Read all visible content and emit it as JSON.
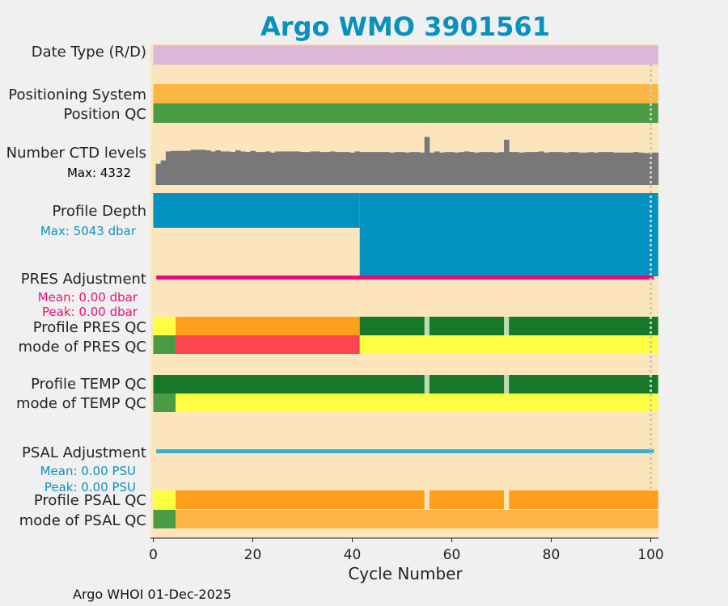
{
  "chart_data": {
    "type": "bar",
    "title": "Argo WMO 3901561",
    "xlabel": "Cycle Number",
    "xlim": [
      0,
      102
    ],
    "x_ticks": [
      "0",
      "20",
      "40",
      "60",
      "80",
      "100"
    ],
    "footer": "Argo WHOI 01-Dec-2025",
    "colors": {
      "background": "#fce5bc",
      "date_type": "#dbb8da",
      "positioning_system": "#fcb443",
      "position_qc": "#4a9a46",
      "ctd": "#787878",
      "depth": "#0391c0",
      "pres_adj": "#ea0b7b",
      "psal_adj": "#35b1cf",
      "qc_green_dark": "#18782a",
      "qc_green": "#4a9a46",
      "qc_yellow": "#fdfe40",
      "qc_orange": "#fd9f1d",
      "qc_light_orange": "#fdb444",
      "qc_red": "#fd4552",
      "gap": "#bcdcb4",
      "dotted_line": "#c8c8c8"
    },
    "rows": {
      "date_type": "Date Type (R/D)",
      "positioning_system": "Positioning System",
      "position_qc": "Position QC",
      "ctd_levels": "Number CTD levels",
      "profile_depth": "Profile Depth",
      "pres_adjustment": "PRES Adjustment",
      "profile_pres_qc": "Profile PRES QC",
      "mode_pres_qc": "mode of PRES QC",
      "profile_temp_qc": "Profile TEMP QC",
      "mode_temp_qc": "mode of TEMP QC",
      "psal_adjustment": "PSAL Adjustment",
      "profile_psal_qc": "Profile PSAL QC",
      "mode_psal_qc": "mode of PSAL QC"
    },
    "notes": {
      "ctd_max": "Max: 4332",
      "depth_max": "Max: 5043 dbar",
      "pres_mean": "Mean: 0.00 dbar",
      "pres_peak": "Peak: 0.00 dbar",
      "psal_mean": "Mean: 0.00 PSU",
      "psal_peak": "Peak: 0.00 PSU"
    },
    "ctd_max_value": 4332,
    "ctd_levels": [
      1900,
      2200,
      3000,
      3050,
      3050,
      3050,
      3050,
      3150,
      3150,
      3150,
      3100,
      3000,
      3100,
      3000,
      3000,
      2950,
      3100,
      3000,
      2950,
      3050,
      2950,
      2950,
      3000,
      2900,
      3000,
      3000,
      3000,
      3000,
      3000,
      2950,
      2950,
      3000,
      3000,
      2950,
      2950,
      3000,
      2950,
      2950,
      2950,
      2900,
      3000,
      2950,
      2950,
      2950,
      2950,
      2950,
      2950,
      2900,
      2950,
      2950,
      2900,
      2950,
      2950,
      2900,
      4300,
      2900,
      3000,
      2900,
      2950,
      2950,
      2900,
      2950,
      3000,
      2950,
      2900,
      2950,
      2950,
      2950,
      2900,
      2950,
      4050,
      2950,
      2950,
      2900,
      2950,
      2950,
      2950,
      3000,
      2900,
      2950,
      2950,
      2950,
      2900,
      2950,
      2950,
      2900,
      2900,
      2950,
      2900,
      2950,
      2950,
      2950,
      2900,
      2900,
      2900,
      2900,
      2950,
      2900,
      2850,
      2900,
      2900
    ],
    "profile_depth": [
      {
        "from": 0,
        "to": 41,
        "value": 2100
      },
      {
        "from": 41,
        "to": 101,
        "value": 5043
      }
    ],
    "profile_pres_qc": [
      {
        "from": 0,
        "to": 4,
        "color": "qc_yellow"
      },
      {
        "from": 4,
        "to": 41,
        "color": "qc_orange"
      },
      {
        "from": 41,
        "to": 101,
        "color": "qc_green_dark"
      }
    ],
    "mode_pres_qc": [
      {
        "from": 0,
        "to": 4,
        "color": "qc_green"
      },
      {
        "from": 4,
        "to": 41,
        "color": "qc_red"
      },
      {
        "from": 41,
        "to": 101,
        "color": "qc_yellow"
      }
    ],
    "profile_temp_qc": [
      {
        "from": 0,
        "to": 101,
        "color": "qc_green_dark"
      }
    ],
    "mode_temp_qc": [
      {
        "from": 0,
        "to": 4,
        "color": "qc_green"
      },
      {
        "from": 4,
        "to": 101,
        "color": "qc_yellow"
      }
    ],
    "profile_psal_qc": [
      {
        "from": 0,
        "to": 4,
        "color": "qc_yellow"
      },
      {
        "from": 4,
        "to": 101,
        "color": "qc_orange"
      }
    ],
    "mode_psal_qc": [
      {
        "from": 0,
        "to": 4,
        "color": "qc_green"
      },
      {
        "from": 4,
        "to": 101,
        "color": "qc_light_orange"
      }
    ],
    "missing_cycles": [
      54,
      70
    ]
  }
}
